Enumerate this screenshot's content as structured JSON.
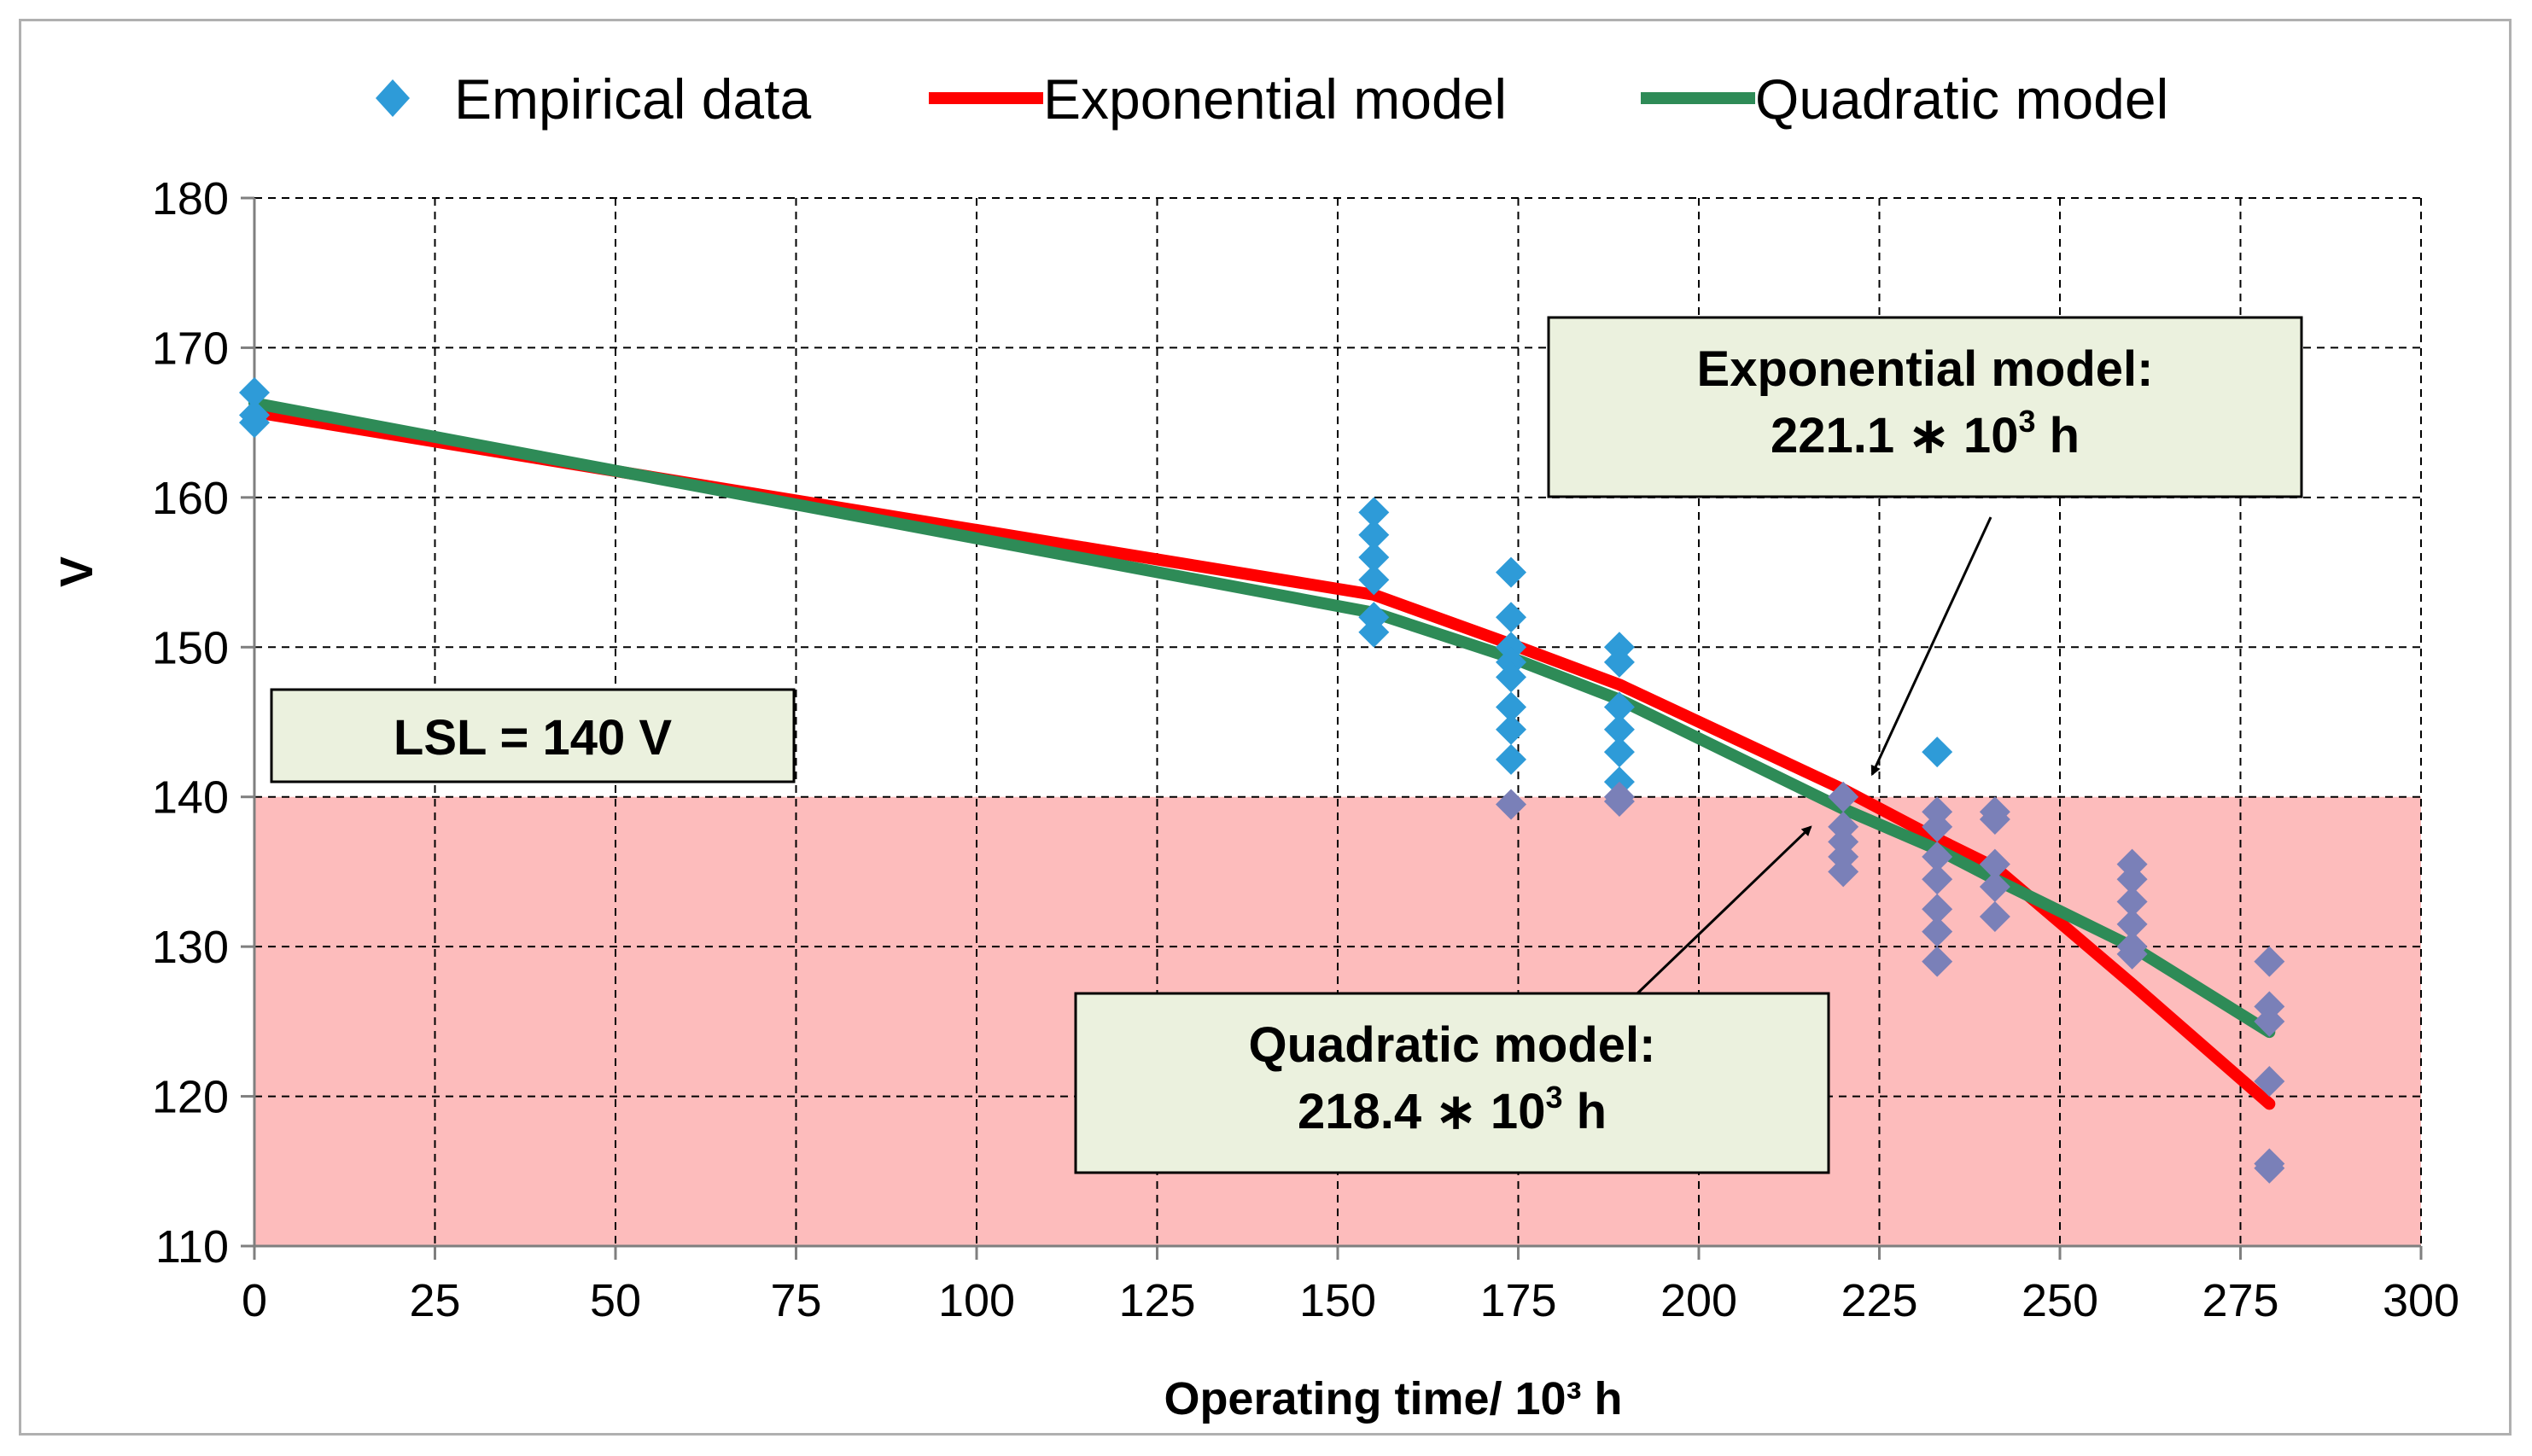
{
  "chart_data": {
    "type": "line",
    "title": "",
    "xlabel": "Operating time/ 10³ h",
    "ylabel": "V",
    "xlim": [
      0,
      300
    ],
    "ylim": [
      110,
      180
    ],
    "xticks": [
      0,
      25,
      50,
      75,
      100,
      125,
      150,
      175,
      200,
      225,
      250,
      275,
      300
    ],
    "yticks": [
      110,
      120,
      130,
      140,
      150,
      160,
      170,
      180
    ],
    "grid": true,
    "legend": {
      "position": "top",
      "entries": [
        "Empirical data",
        "Exponential model",
        "Quadratic model"
      ]
    },
    "series": [
      {
        "name": "Empirical data",
        "kind": "scatter",
        "marker": "diamond",
        "color": "#2e9bd8",
        "color_in_zone": "#7a80b8",
        "points": [
          [
            0,
            167
          ],
          [
            0,
            165.5
          ],
          [
            0,
            165
          ],
          [
            155,
            159
          ],
          [
            155,
            157.5
          ],
          [
            155,
            156
          ],
          [
            155,
            154.5
          ],
          [
            155,
            152
          ],
          [
            155,
            151
          ],
          [
            174,
            155
          ],
          [
            174,
            152
          ],
          [
            174,
            150
          ],
          [
            174,
            149
          ],
          [
            174,
            148
          ],
          [
            174,
            146
          ],
          [
            174,
            144.5
          ],
          [
            174,
            142.5
          ],
          [
            174,
            139.5
          ],
          [
            189,
            150
          ],
          [
            189,
            149
          ],
          [
            189,
            146
          ],
          [
            189,
            144.5
          ],
          [
            189,
            143
          ],
          [
            189,
            141
          ],
          [
            189,
            140
          ],
          [
            189,
            139.7
          ],
          [
            220,
            140
          ],
          [
            220,
            138
          ],
          [
            220,
            137
          ],
          [
            220,
            136
          ],
          [
            220,
            135
          ],
          [
            233,
            143
          ],
          [
            233,
            139
          ],
          [
            233,
            138
          ],
          [
            233,
            136
          ],
          [
            233,
            134.5
          ],
          [
            233,
            132.5
          ],
          [
            233,
            131
          ],
          [
            233,
            129
          ],
          [
            241,
            139
          ],
          [
            241,
            138.5
          ],
          [
            241,
            135.5
          ],
          [
            241,
            134
          ],
          [
            241,
            132
          ],
          [
            260,
            135.5
          ],
          [
            260,
            134.5
          ],
          [
            260,
            133
          ],
          [
            260,
            131.5
          ],
          [
            260,
            130
          ],
          [
            260,
            129.5
          ],
          [
            279,
            129
          ],
          [
            279,
            126
          ],
          [
            279,
            125
          ],
          [
            279,
            121
          ],
          [
            279,
            115.5
          ],
          [
            279,
            115.2
          ]
        ]
      },
      {
        "name": "Exponential model",
        "kind": "line",
        "color": "#ff0000",
        "x": [
          0,
          155,
          174,
          189,
          220,
          233,
          241,
          260,
          279
        ],
        "values": [
          165.7,
          153.5,
          150.2,
          147.5,
          140.5,
          137.2,
          135.3,
          127.5,
          119.5
        ]
      },
      {
        "name": "Quadratic model",
        "kind": "line",
        "color": "#2e8b57",
        "x": [
          0,
          155,
          174,
          189,
          220,
          233,
          241,
          260,
          279
        ],
        "values": [
          166.3,
          152.3,
          149.3,
          146.5,
          139.2,
          136.5,
          134.5,
          130,
          124.3
        ]
      }
    ],
    "reference_zone": {
      "label": "LSL = 140 V",
      "y_from": 110,
      "y_to": 140,
      "color": "#fdbcbc"
    },
    "annotations": [
      {
        "id": "exp",
        "line1": "Exponential model:",
        "line2_prefix": "221.1 ∗ 10",
        "line2_sup": "3",
        "line2_suffix": " h",
        "arrow_target": [
          224,
          141.5
        ]
      },
      {
        "id": "quad",
        "line1": "Quadratic model:",
        "line2_prefix": "218.4 ∗ 10",
        "line2_sup": "3",
        "line2_suffix": " h",
        "arrow_target": [
          215.5,
          138
        ]
      }
    ],
    "colors": {
      "annotation_fill": "#ebf1de",
      "frame_border": "#b0b0b0",
      "grid": "#000000"
    }
  }
}
